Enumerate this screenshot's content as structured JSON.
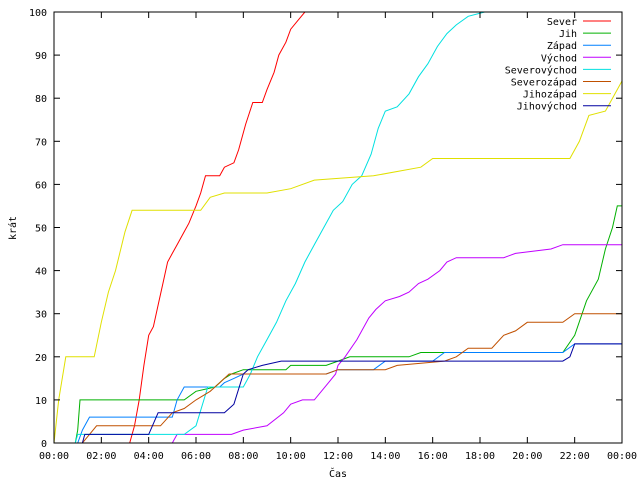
{
  "chart_data": {
    "type": "line",
    "xlabel": "Čas",
    "ylabel": "krát",
    "xlim": [
      0,
      24
    ],
    "ylim": [
      0,
      100
    ],
    "grid": false,
    "legend_position": "top-right",
    "x_ticks": [
      {
        "value": 0,
        "label": "00:00"
      },
      {
        "value": 2,
        "label": "02:00"
      },
      {
        "value": 4,
        "label": "04:00"
      },
      {
        "value": 6,
        "label": "06:00"
      },
      {
        "value": 8,
        "label": "08:00"
      },
      {
        "value": 10,
        "label": "10:00"
      },
      {
        "value": 12,
        "label": "12:00"
      },
      {
        "value": 14,
        "label": "14:00"
      },
      {
        "value": 16,
        "label": "16:00"
      },
      {
        "value": 18,
        "label": "18:00"
      },
      {
        "value": 20,
        "label": "20:00"
      },
      {
        "value": 22,
        "label": "22:00"
      },
      {
        "value": 24,
        "label": "00:00"
      }
    ],
    "y_ticks": [
      0,
      10,
      20,
      30,
      40,
      50,
      60,
      70,
      80,
      90,
      100
    ],
    "series": [
      {
        "name": "Sever",
        "color": "#ff0000",
        "points": [
          [
            0,
            0
          ],
          [
            3.2,
            0
          ],
          [
            3.4,
            4
          ],
          [
            3.6,
            10
          ],
          [
            3.8,
            18
          ],
          [
            4.0,
            25
          ],
          [
            4.2,
            27
          ],
          [
            4.4,
            32
          ],
          [
            4.6,
            37
          ],
          [
            4.8,
            42
          ],
          [
            5.0,
            44
          ],
          [
            5.2,
            46
          ],
          [
            5.5,
            49
          ],
          [
            5.7,
            51
          ],
          [
            6.0,
            55
          ],
          [
            6.2,
            58
          ],
          [
            6.4,
            62
          ],
          [
            7.0,
            62
          ],
          [
            7.2,
            64
          ],
          [
            7.6,
            65
          ],
          [
            7.8,
            68
          ],
          [
            8.1,
            74
          ],
          [
            8.4,
            79
          ],
          [
            8.8,
            79
          ],
          [
            9.0,
            82
          ],
          [
            9.3,
            86
          ],
          [
            9.5,
            90
          ],
          [
            9.8,
            93
          ],
          [
            10.0,
            96
          ],
          [
            10.3,
            98
          ],
          [
            10.6,
            100
          ]
        ]
      },
      {
        "name": "Jih",
        "color": "#00b000",
        "points": [
          [
            0,
            0
          ],
          [
            0.9,
            0
          ],
          [
            1.0,
            3
          ],
          [
            1.1,
            10
          ],
          [
            5.5,
            10
          ],
          [
            6.0,
            12
          ],
          [
            6.8,
            13
          ],
          [
            7.2,
            15
          ],
          [
            7.5,
            16
          ],
          [
            8.0,
            17
          ],
          [
            9.8,
            17
          ],
          [
            10.0,
            18
          ],
          [
            11.5,
            18
          ],
          [
            12.0,
            19
          ],
          [
            12.5,
            20
          ],
          [
            15.0,
            20
          ],
          [
            15.5,
            21
          ],
          [
            21.5,
            21
          ],
          [
            22.0,
            25
          ],
          [
            22.5,
            33
          ],
          [
            23.0,
            38
          ],
          [
            23.3,
            45
          ],
          [
            23.6,
            50
          ],
          [
            23.8,
            55
          ],
          [
            24,
            55
          ]
        ]
      },
      {
        "name": "Západ",
        "color": "#0080ff",
        "points": [
          [
            0,
            0
          ],
          [
            1.0,
            0
          ],
          [
            1.2,
            3
          ],
          [
            1.5,
            6
          ],
          [
            5.0,
            6
          ],
          [
            5.2,
            10
          ],
          [
            5.5,
            13
          ],
          [
            7.0,
            13
          ],
          [
            7.2,
            14
          ],
          [
            7.6,
            15
          ],
          [
            8.0,
            16
          ],
          [
            11.5,
            16
          ],
          [
            12.0,
            17
          ],
          [
            13.5,
            17
          ],
          [
            14.0,
            19
          ],
          [
            16.0,
            19
          ],
          [
            16.5,
            21
          ],
          [
            18.0,
            21
          ],
          [
            18.5,
            21
          ],
          [
            21.5,
            21
          ],
          [
            22.0,
            23
          ],
          [
            24,
            23
          ]
        ]
      },
      {
        "name": "Východ",
        "color": "#c000ff",
        "points": [
          [
            0,
            0
          ],
          [
            5.0,
            0
          ],
          [
            5.2,
            2
          ],
          [
            7.5,
            2
          ],
          [
            8.0,
            3
          ],
          [
            9.0,
            4
          ],
          [
            9.7,
            7
          ],
          [
            10.0,
            9
          ],
          [
            10.5,
            10
          ],
          [
            11.0,
            10
          ],
          [
            11.6,
            14
          ],
          [
            11.9,
            16
          ],
          [
            12.0,
            18
          ],
          [
            12.3,
            20
          ],
          [
            12.8,
            24
          ],
          [
            13.3,
            29
          ],
          [
            13.6,
            31
          ],
          [
            14.0,
            33
          ],
          [
            14.6,
            34
          ],
          [
            15.0,
            35
          ],
          [
            15.4,
            37
          ],
          [
            15.8,
            38
          ],
          [
            16.3,
            40
          ],
          [
            16.6,
            42
          ],
          [
            17.0,
            43
          ],
          [
            19.0,
            43
          ],
          [
            19.5,
            44
          ],
          [
            21.0,
            45
          ],
          [
            21.5,
            46
          ],
          [
            24,
            46
          ]
        ]
      },
      {
        "name": "Severovýchod",
        "color": "#00e0e0",
        "points": [
          [
            0,
            0
          ],
          [
            0.9,
            0
          ],
          [
            1.0,
            2
          ],
          [
            5.5,
            2
          ],
          [
            6.0,
            4
          ],
          [
            6.5,
            13
          ],
          [
            8.0,
            13
          ],
          [
            8.3,
            16
          ],
          [
            8.6,
            20
          ],
          [
            9.0,
            24
          ],
          [
            9.4,
            28
          ],
          [
            9.8,
            33
          ],
          [
            10.2,
            37
          ],
          [
            10.6,
            42
          ],
          [
            11.0,
            46
          ],
          [
            11.4,
            50
          ],
          [
            11.8,
            54
          ],
          [
            12.2,
            56
          ],
          [
            12.6,
            60
          ],
          [
            13.0,
            62
          ],
          [
            13.4,
            67
          ],
          [
            13.7,
            73
          ],
          [
            14.0,
            77
          ],
          [
            14.5,
            78
          ],
          [
            15.0,
            81
          ],
          [
            15.4,
            85
          ],
          [
            15.8,
            88
          ],
          [
            16.2,
            92
          ],
          [
            16.6,
            95
          ],
          [
            17.0,
            97
          ],
          [
            17.5,
            99
          ],
          [
            18.2,
            100
          ]
        ]
      },
      {
        "name": "Severozápad",
        "color": "#c05000",
        "points": [
          [
            0,
            0
          ],
          [
            1.2,
            0
          ],
          [
            1.5,
            2
          ],
          [
            1.8,
            4
          ],
          [
            4.5,
            4
          ],
          [
            5.0,
            7
          ],
          [
            5.5,
            8
          ],
          [
            6.0,
            10
          ],
          [
            6.6,
            12
          ],
          [
            7.0,
            14
          ],
          [
            7.4,
            16
          ],
          [
            11.5,
            16
          ],
          [
            12.0,
            17
          ],
          [
            14.0,
            17
          ],
          [
            14.5,
            18
          ],
          [
            16.5,
            19
          ],
          [
            17.0,
            20
          ],
          [
            17.5,
            22
          ],
          [
            18.5,
            22
          ],
          [
            19.0,
            25
          ],
          [
            19.5,
            26
          ],
          [
            20.0,
            28
          ],
          [
            21.5,
            28
          ],
          [
            22.0,
            30
          ],
          [
            24,
            30
          ]
        ]
      },
      {
        "name": "Jihozápad",
        "color": "#e0e000",
        "points": [
          [
            0,
            0
          ],
          [
            0.2,
            10
          ],
          [
            0.5,
            20
          ],
          [
            1.7,
            20
          ],
          [
            2.0,
            28
          ],
          [
            2.3,
            35
          ],
          [
            2.6,
            40
          ],
          [
            3.0,
            49
          ],
          [
            3.3,
            54
          ],
          [
            6.2,
            54
          ],
          [
            6.6,
            57
          ],
          [
            7.2,
            58
          ],
          [
            9.0,
            58
          ],
          [
            10.0,
            59
          ],
          [
            11.0,
            61
          ],
          [
            13.5,
            62
          ],
          [
            15.5,
            64
          ],
          [
            16.0,
            66
          ],
          [
            21.8,
            66
          ],
          [
            22.2,
            70
          ],
          [
            22.6,
            76
          ],
          [
            23.3,
            77
          ],
          [
            23.6,
            80
          ],
          [
            24,
            84
          ]
        ]
      },
      {
        "name": "Jihovýchod",
        "color": "#0000a0",
        "points": [
          [
            0,
            0
          ],
          [
            1.2,
            0
          ],
          [
            1.3,
            2
          ],
          [
            4.0,
            2
          ],
          [
            4.4,
            7
          ],
          [
            7.2,
            7
          ],
          [
            7.6,
            9
          ],
          [
            8.0,
            16
          ],
          [
            8.2,
            17
          ],
          [
            8.8,
            18
          ],
          [
            9.6,
            19
          ],
          [
            21.5,
            19
          ],
          [
            21.8,
            20
          ],
          [
            22.0,
            23
          ],
          [
            24,
            23
          ]
        ]
      }
    ]
  }
}
